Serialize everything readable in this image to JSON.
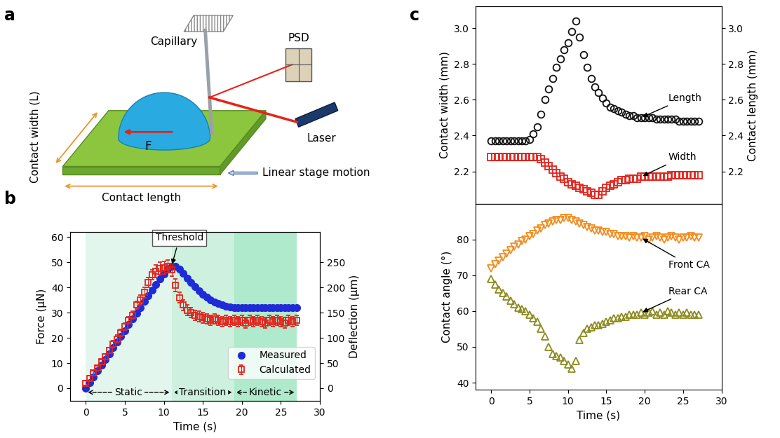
{
  "panel_labels": [
    "a",
    "b",
    "c"
  ],
  "diagram": {
    "labels": {
      "capillary": "Capillary",
      "psd": "PSD",
      "laser": "Laser",
      "contact_width": "Contact width (L)",
      "force": "F",
      "contact_length": "Contact length",
      "stage": "Linear stage motion"
    }
  },
  "chart_data": [
    {
      "type": "scatter",
      "x": [
        0,
        0.5,
        1,
        1.5,
        2,
        2.5,
        3,
        3.5,
        4,
        4.5,
        5,
        5.5,
        6,
        6.5,
        7,
        7.5,
        8,
        8.5,
        9,
        9.5,
        10,
        10.5,
        11,
        11.5,
        12,
        12.5,
        13,
        13.5,
        14,
        14.5,
        15,
        15.5,
        16,
        16.5,
        17,
        17.5,
        18,
        18.5,
        19,
        19.5,
        20,
        20.5,
        21,
        21.5,
        22,
        22.5,
        23,
        23.5,
        24,
        24.5,
        25,
        25.5,
        26,
        26.5,
        27
      ],
      "xlim": [
        -2,
        30
      ],
      "xticks": [
        0,
        5,
        10,
        15,
        20,
        25,
        30
      ],
      "ylim": [
        -5,
        62
      ],
      "yticks": [
        0,
        10,
        20,
        30,
        40,
        50,
        60
      ],
      "y2lim": [
        -25,
        310
      ],
      "y2ticks": [
        0,
        50,
        100,
        150,
        200,
        250
      ],
      "xlabel": "Time (s)",
      "ylabel": "Force (μN)",
      "y2label": "Deflection (μm)",
      "legend": "lower right",
      "annotations": [
        {
          "text": "Threshold"
        }
      ],
      "regions": [
        {
          "name": "Static",
          "x": [
            0,
            11
          ],
          "color": "#e3f6ee"
        },
        {
          "name": "Transition",
          "x": [
            11,
            19
          ],
          "color": "#cdf1de"
        },
        {
          "name": "Kinetic",
          "x": [
            19,
            27
          ],
          "color": "#aeeacb"
        }
      ],
      "series": [
        {
          "name": "Measured",
          "color": "#1f2bd6",
          "marker": "o",
          "values": [
            0,
            2.2,
            4.5,
            6.8,
            9.1,
            11.4,
            13.7,
            16,
            18.3,
            20.6,
            22.9,
            25.2,
            27.5,
            29.8,
            32.1,
            34.4,
            36.7,
            39,
            41.3,
            43.5,
            45.5,
            47.3,
            48.5,
            48.3,
            47.2,
            45.6,
            43.8,
            42,
            40.3,
            38.8,
            37.4,
            36.2,
            35.2,
            34.3,
            33.6,
            33,
            32.6,
            32.3,
            32.1,
            32,
            32,
            32,
            32,
            32,
            32,
            32,
            32,
            32,
            32,
            32,
            32,
            32,
            32,
            32,
            32
          ]
        },
        {
          "name": "Calculated",
          "color": "#e3231b",
          "marker": "s",
          "values": [
            2,
            4,
            6,
            8,
            10.5,
            12.5,
            15,
            17.5,
            19.5,
            22,
            24.5,
            27,
            29,
            33,
            35,
            38,
            42,
            45,
            46.5,
            47.5,
            48,
            48.5,
            47,
            41,
            36,
            33,
            31,
            30,
            29,
            28.5,
            28,
            27.5,
            27,
            27.5,
            27,
            26.5,
            27,
            26.5,
            27,
            26.5,
            27,
            26,
            27,
            26.5,
            27,
            26.5,
            26,
            27,
            26.5,
            27,
            26.5,
            26,
            27,
            26.5,
            27
          ],
          "errors": [
            1,
            1,
            1,
            1,
            1,
            1,
            1,
            1.5,
            1.5,
            1.5,
            1.5,
            1.5,
            1.5,
            1.5,
            2,
            2,
            2,
            2,
            2.5,
            2.5,
            2.5,
            2.5,
            2.5,
            2.5,
            2,
            2,
            2,
            2,
            2,
            2,
            2,
            2,
            2,
            2,
            2,
            2,
            2,
            2,
            2,
            2,
            2,
            2,
            2,
            2,
            2,
            2,
            2,
            2,
            2,
            2,
            2,
            2,
            2,
            2,
            2
          ]
        }
      ]
    },
    {
      "type": "scatter",
      "tick_labels": "y",
      "x": [
        0,
        0.5,
        1,
        1.5,
        2,
        2.5,
        3,
        3.5,
        4,
        4.5,
        5,
        5.5,
        6,
        6.5,
        7,
        7.5,
        8,
        8.5,
        9,
        9.5,
        10,
        10.5,
        11,
        11.5,
        12,
        12.5,
        13,
        13.5,
        14,
        14.5,
        15,
        15.5,
        16,
        16.5,
        17,
        17.5,
        18,
        18.5,
        19,
        19.5,
        20,
        20.5,
        21,
        21.5,
        22,
        22.5,
        23,
        23.5,
        24,
        24.5,
        25,
        25.5,
        26,
        26.5,
        27
      ],
      "xlim": [
        -2,
        30
      ],
      "xticks": [
        0,
        5,
        10,
        15,
        20,
        25,
        30
      ],
      "ylim": [
        2.02,
        3.12
      ],
      "yticks": [
        2.2,
        2.4,
        2.6,
        2.8,
        3.0
      ],
      "y2lim": [
        2.02,
        3.12
      ],
      "y2ticks": [
        2.2,
        2.4,
        2.6,
        2.8,
        3.0
      ],
      "ylabel": "Contact width (mm)",
      "y2label": "Contact length (mm)",
      "series": [
        {
          "name": "Length",
          "color": "#111111",
          "marker": "o",
          "axis": "y2",
          "values": [
            2.37,
            2.37,
            2.37,
            2.37,
            2.37,
            2.37,
            2.37,
            2.37,
            2.37,
            2.37,
            2.38,
            2.41,
            2.45,
            2.52,
            2.6,
            2.66,
            2.72,
            2.78,
            2.83,
            2.88,
            2.92,
            2.98,
            3.04,
            2.95,
            2.85,
            2.78,
            2.72,
            2.67,
            2.64,
            2.61,
            2.58,
            2.56,
            2.55,
            2.54,
            2.53,
            2.52,
            2.51,
            2.51,
            2.5,
            2.5,
            2.5,
            2.5,
            2.5,
            2.49,
            2.49,
            2.49,
            2.49,
            2.49,
            2.49,
            2.48,
            2.48,
            2.48,
            2.48,
            2.48,
            2.48
          ]
        },
        {
          "name": "Width",
          "color": "#e3231b",
          "marker": "s",
          "values": [
            2.28,
            2.28,
            2.28,
            2.28,
            2.28,
            2.28,
            2.28,
            2.28,
            2.28,
            2.28,
            2.28,
            2.28,
            2.28,
            2.27,
            2.25,
            2.23,
            2.21,
            2.19,
            2.17,
            2.16,
            2.14,
            2.13,
            2.12,
            2.11,
            2.1,
            2.09,
            2.08,
            2.07,
            2.07,
            2.09,
            2.11,
            2.12,
            2.13,
            2.14,
            2.15,
            2.15,
            2.16,
            2.16,
            2.16,
            2.17,
            2.17,
            2.17,
            2.17,
            2.17,
            2.17,
            2.17,
            2.17,
            2.18,
            2.18,
            2.18,
            2.18,
            2.18,
            2.18,
            2.18,
            2.18
          ]
        }
      ]
    },
    {
      "type": "scatter",
      "x": [
        0,
        0.5,
        1,
        1.5,
        2,
        2.5,
        3,
        3.5,
        4,
        4.5,
        5,
        5.5,
        6,
        6.5,
        7,
        7.5,
        8,
        8.5,
        9,
        9.5,
        10,
        10.5,
        11,
        11.5,
        12,
        12.5,
        13,
        13.5,
        14,
        14.5,
        15,
        15.5,
        16,
        16.5,
        17,
        17.5,
        18,
        18.5,
        19,
        19.5,
        20,
        20.5,
        21,
        21.5,
        22,
        22.5,
        23,
        23.5,
        24,
        24.5,
        25,
        25.5,
        26,
        26.5,
        27
      ],
      "xlim": [
        -2,
        30
      ],
      "xticks": [
        0,
        5,
        10,
        15,
        20,
        25,
        30
      ],
      "ylim": [
        38,
        90
      ],
      "yticks": [
        40,
        50,
        60,
        70,
        80
      ],
      "xlabel": "Time (s)",
      "ylabel": "Contact angle (°)",
      "series": [
        {
          "name": "Front CA",
          "color": "#f28c1e",
          "marker": "v",
          "values": [
            72,
            73,
            74,
            75,
            76,
            77,
            78,
            78.5,
            79.5,
            80,
            81,
            81.5,
            82.5,
            83,
            84,
            84.5,
            85,
            85.5,
            85.5,
            86,
            86,
            85.5,
            85,
            84.5,
            84,
            83.5,
            83,
            82.5,
            82.5,
            82,
            82,
            81.5,
            81.5,
            81,
            81,
            81,
            80.5,
            81,
            80.5,
            80.5,
            81,
            80,
            80.5,
            81,
            80.5,
            80,
            80.5,
            81,
            80.5,
            80,
            80.5,
            80.5,
            81,
            80.5,
            80.5
          ]
        },
        {
          "name": "Rear CA",
          "color": "#8c8a1e",
          "marker": "^",
          "values": [
            69,
            67.5,
            66,
            65,
            64,
            63,
            62,
            61,
            60.5,
            60,
            59,
            58,
            57,
            55,
            53,
            50,
            48,
            47.5,
            47,
            46,
            45,
            44,
            46,
            52,
            54,
            55,
            55.5,
            56,
            56,
            56.5,
            57,
            57.5,
            58,
            58,
            58.5,
            58.5,
            59,
            59,
            59,
            59.5,
            59,
            59.5,
            60,
            59,
            59.5,
            59,
            60,
            59.5,
            59,
            59.5,
            59,
            59.5,
            59,
            59,
            59
          ]
        }
      ]
    }
  ]
}
